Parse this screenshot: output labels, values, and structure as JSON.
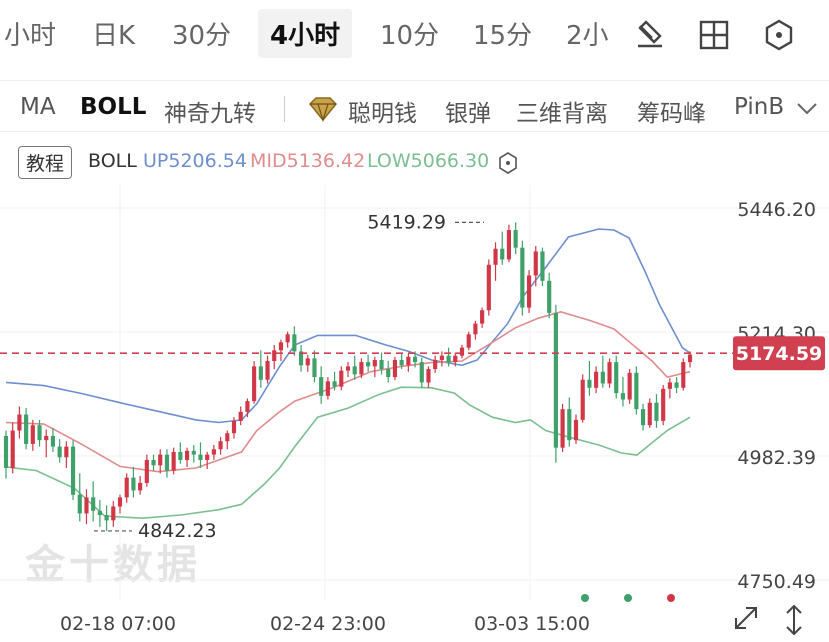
{
  "timeframes": [
    "小时",
    "日K",
    "30分",
    "4小时",
    "10分",
    "15分",
    "2小"
  ],
  "active_timeframe": "4小时",
  "indicators": [
    "MA",
    "BOLL",
    "神奇九转",
    "聪明钱",
    "银弹",
    "三维背离",
    "筹码峰",
    "PinB"
  ],
  "active_indicator": "BOLL",
  "legend": {
    "tutorial": "教程",
    "name": "BOLL",
    "up": "UP5206.54",
    "mid": "MID5136.42",
    "low": "LOW5066.30"
  },
  "colors": {
    "up": "#6d8fd0",
    "mid": "#e08c8c",
    "low": "#7cbf90",
    "bull": "#d03848",
    "bear": "#3fa06a",
    "price_line": "#d04050"
  },
  "watermark": "金十数据",
  "chart_data": {
    "type": "candlestick",
    "y_ticks": [
      "5446.20",
      "5214.30",
      "4982.39",
      "4750.49"
    ],
    "x_ticks": [
      "02-18 07:00",
      "02-24 23:00",
      "03-03 15:00"
    ],
    "current_price": "5174.59",
    "annotations": {
      "high": "5419.29",
      "low": "4842.23"
    },
    "ylim": [
      4750.49,
      5446.2
    ],
    "candles": [
      [
        5020,
        5030,
        4940,
        4960
      ],
      [
        4960,
        5045,
        4950,
        5030
      ],
      [
        5030,
        5075,
        5015,
        5060
      ],
      [
        5060,
        5072,
        4995,
        5005
      ],
      [
        5005,
        5050,
        4992,
        5040
      ],
      [
        5040,
        5050,
        5000,
        5012
      ],
      [
        5012,
        5032,
        4980,
        5020
      ],
      [
        5020,
        5035,
        4990,
        5000
      ],
      [
        5000,
        5014,
        4970,
        4980
      ],
      [
        4980,
        5010,
        4960,
        5000
      ],
      [
        5000,
        5012,
        4900,
        4910
      ],
      [
        4910,
        4950,
        4860,
        4875
      ],
      [
        4875,
        4920,
        4855,
        4905
      ],
      [
        4905,
        4935,
        4860,
        4880
      ],
      [
        4880,
        4900,
        4850,
        4872
      ],
      [
        4872,
        4890,
        4842.23,
        4862
      ],
      [
        4862,
        4898,
        4850,
        4888
      ],
      [
        4888,
        4910,
        4875,
        4905
      ],
      [
        4905,
        4950,
        4895,
        4942
      ],
      [
        4942,
        4962,
        4905,
        4918
      ],
      [
        4918,
        4945,
        4910,
        4932
      ],
      [
        4932,
        4985,
        4925,
        4975
      ],
      [
        4975,
        4985,
        4955,
        4965
      ],
      [
        4965,
        4995,
        4950,
        4985
      ],
      [
        4985,
        4995,
        4942,
        4955
      ],
      [
        4955,
        4998,
        4948,
        4990
      ],
      [
        4990,
        5008,
        4968,
        4975
      ],
      [
        4975,
        4998,
        4962,
        4992
      ],
      [
        4992,
        5003,
        4970,
        4985
      ],
      [
        4985,
        5008,
        4960,
        4975
      ],
      [
        4975,
        4990,
        4958,
        4985
      ],
      [
        4985,
        5003,
        4975,
        4995
      ],
      [
        4995,
        5018,
        4985,
        5010
      ],
      [
        5010,
        5030,
        4995,
        5025
      ],
      [
        5025,
        5055,
        5015,
        5048
      ],
      [
        5048,
        5075,
        5040,
        5065
      ],
      [
        5065,
        5090,
        5055,
        5085
      ],
      [
        5085,
        5160,
        5080,
        5150
      ],
      [
        5150,
        5180,
        5110,
        5125
      ],
      [
        5125,
        5170,
        5118,
        5160
      ],
      [
        5160,
        5190,
        5145,
        5180
      ],
      [
        5180,
        5200,
        5160,
        5195
      ],
      [
        5195,
        5215,
        5185,
        5210
      ],
      [
        5210,
        5225,
        5170,
        5178
      ],
      [
        5178,
        5190,
        5140,
        5152
      ],
      [
        5152,
        5172,
        5140,
        5165
      ],
      [
        5165,
        5180,
        5120,
        5130
      ],
      [
        5130,
        5150,
        5080,
        5095
      ],
      [
        5095,
        5130,
        5088,
        5122
      ],
      [
        5122,
        5140,
        5105,
        5112
      ],
      [
        5112,
        5150,
        5105,
        5142
      ],
      [
        5142,
        5158,
        5130,
        5150
      ],
      [
        5150,
        5170,
        5125,
        5135
      ],
      [
        5135,
        5165,
        5128,
        5158
      ],
      [
        5158,
        5172,
        5140,
        5150
      ],
      [
        5150,
        5168,
        5130,
        5162
      ],
      [
        5162,
        5176,
        5135,
        5145
      ],
      [
        5145,
        5160,
        5120,
        5130
      ],
      [
        5130,
        5168,
        5124,
        5162
      ],
      [
        5162,
        5176,
        5145,
        5152
      ],
      [
        5152,
        5174,
        5140,
        5168
      ],
      [
        5168,
        5178,
        5148,
        5158
      ],
      [
        5158,
        5166,
        5110,
        5120
      ],
      [
        5120,
        5150,
        5110,
        5145
      ],
      [
        5145,
        5170,
        5138,
        5162
      ],
      [
        5162,
        5178,
        5150,
        5170
      ],
      [
        5170,
        5185,
        5150,
        5158
      ],
      [
        5158,
        5176,
        5150,
        5170
      ],
      [
        5170,
        5190,
        5165,
        5185
      ],
      [
        5185,
        5215,
        5180,
        5210
      ],
      [
        5210,
        5235,
        5200,
        5230
      ],
      [
        5230,
        5260,
        5222,
        5255
      ],
      [
        5255,
        5350,
        5245,
        5340
      ],
      [
        5340,
        5382,
        5310,
        5370
      ],
      [
        5370,
        5402,
        5340,
        5350
      ],
      [
        5350,
        5415,
        5345,
        5405
      ],
      [
        5405,
        5419.29,
        5360,
        5372
      ],
      [
        5372,
        5385,
        5245,
        5260
      ],
      [
        5260,
        5330,
        5250,
        5320
      ],
      [
        5320,
        5375,
        5300,
        5365
      ],
      [
        5365,
        5372,
        5300,
        5310
      ],
      [
        5310,
        5325,
        5240,
        5250
      ],
      [
        5250,
        5265,
        4970,
        4998
      ],
      [
        4998,
        5080,
        4990,
        5070
      ],
      [
        5070,
        5092,
        5000,
        5012
      ],
      [
        5012,
        5060,
        5005,
        5050
      ],
      [
        5050,
        5135,
        5045,
        5125
      ],
      [
        5125,
        5160,
        5095,
        5110
      ],
      [
        5110,
        5150,
        5100,
        5140
      ],
      [
        5140,
        5170,
        5110,
        5118
      ],
      [
        5118,
        5165,
        5110,
        5158
      ],
      [
        5158,
        5170,
        5090,
        5100
      ],
      [
        5100,
        5130,
        5075,
        5088
      ],
      [
        5088,
        5145,
        5080,
        5138
      ],
      [
        5138,
        5150,
        5060,
        5070
      ],
      [
        5070,
        5080,
        5030,
        5040
      ],
      [
        5040,
        5090,
        5035,
        5082
      ],
      [
        5082,
        5098,
        5035,
        5048
      ],
      [
        5048,
        5115,
        5040,
        5108
      ],
      [
        5108,
        5128,
        5090,
        5120
      ],
      [
        5120,
        5130,
        5100,
        5110
      ],
      [
        5110,
        5165,
        5105,
        5158
      ],
      [
        5158,
        5178,
        5148,
        5172
      ]
    ],
    "up_band": [
      [
        0,
        5120
      ],
      [
        0.05,
        5114
      ],
      [
        0.1,
        5099
      ],
      [
        0.15,
        5082
      ],
      [
        0.2,
        5066
      ],
      [
        0.25,
        5050
      ],
      [
        0.28,
        5045
      ],
      [
        0.31,
        5050
      ],
      [
        0.33,
        5080
      ],
      [
        0.36,
        5150
      ],
      [
        0.38,
        5190
      ],
      [
        0.41,
        5208
      ],
      [
        0.46,
        5208
      ],
      [
        0.5,
        5190
      ],
      [
        0.53,
        5178
      ],
      [
        0.56,
        5162
      ],
      [
        0.6,
        5152
      ],
      [
        0.62,
        5162
      ],
      [
        0.66,
        5230
      ],
      [
        0.68,
        5280
      ],
      [
        0.71,
        5335
      ],
      [
        0.74,
        5392
      ],
      [
        0.78,
        5407
      ],
      [
        0.8,
        5405
      ],
      [
        0.82,
        5390
      ],
      [
        0.84,
        5330
      ],
      [
        0.86,
        5265
      ],
      [
        0.89,
        5185
      ],
      [
        0.9,
        5175
      ]
    ],
    "mid_band": [
      [
        0,
        5045
      ],
      [
        0.05,
        5042
      ],
      [
        0.1,
        5004
      ],
      [
        0.15,
        4963
      ],
      [
        0.2,
        4953
      ],
      [
        0.25,
        4960
      ],
      [
        0.28,
        4975
      ],
      [
        0.31,
        4990
      ],
      [
        0.33,
        5030
      ],
      [
        0.36,
        5065
      ],
      [
        0.38,
        5085
      ],
      [
        0.43,
        5110
      ],
      [
        0.48,
        5140
      ],
      [
        0.52,
        5150
      ],
      [
        0.56,
        5157
      ],
      [
        0.6,
        5160
      ],
      [
        0.64,
        5195
      ],
      [
        0.67,
        5222
      ],
      [
        0.7,
        5240
      ],
      [
        0.73,
        5252
      ],
      [
        0.77,
        5235
      ],
      [
        0.8,
        5220
      ],
      [
        0.82,
        5196
      ],
      [
        0.85,
        5160
      ],
      [
        0.87,
        5130
      ],
      [
        0.9,
        5140
      ]
    ],
    "low_band": [
      [
        0,
        4962
      ],
      [
        0.04,
        4955
      ],
      [
        0.09,
        4922
      ],
      [
        0.13,
        4870
      ],
      [
        0.18,
        4866
      ],
      [
        0.23,
        4872
      ],
      [
        0.28,
        4882
      ],
      [
        0.31,
        4892
      ],
      [
        0.34,
        4930
      ],
      [
        0.36,
        4960
      ],
      [
        0.38,
        5000
      ],
      [
        0.41,
        5055
      ],
      [
        0.45,
        5072
      ],
      [
        0.49,
        5097
      ],
      [
        0.52,
        5111
      ],
      [
        0.56,
        5110
      ],
      [
        0.59,
        5100
      ],
      [
        0.61,
        5078
      ],
      [
        0.64,
        5055
      ],
      [
        0.67,
        5045
      ],
      [
        0.69,
        5050
      ],
      [
        0.71,
        5030
      ],
      [
        0.74,
        5018
      ],
      [
        0.78,
        5003
      ],
      [
        0.81,
        4988
      ],
      [
        0.83,
        4984
      ],
      [
        0.87,
        5030
      ],
      [
        0.9,
        5055
      ]
    ]
  }
}
